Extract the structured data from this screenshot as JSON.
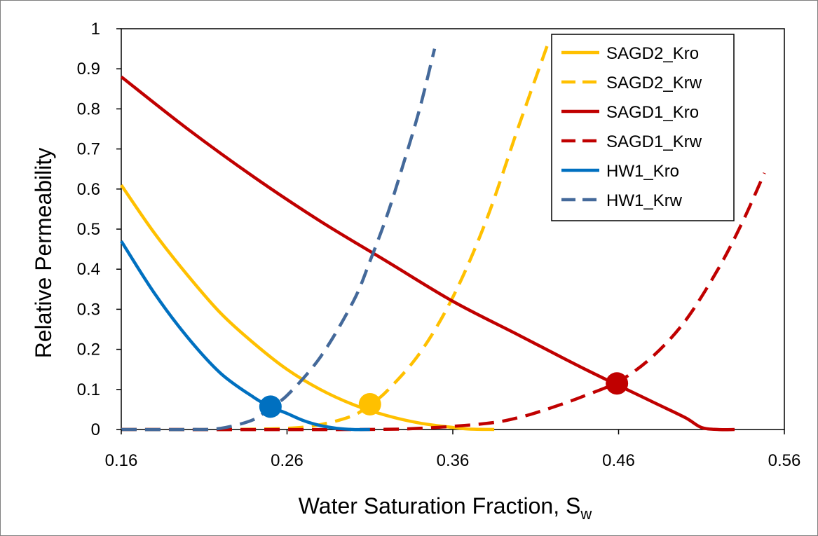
{
  "chart_data": {
    "type": "line",
    "xlabel": "Water Saturation Fraction, S",
    "xlabel_subscript": "w",
    "ylabel": "Relative Permeability",
    "xlim": [
      0.16,
      0.56
    ],
    "ylim": [
      0,
      1
    ],
    "x_ticks": [
      "0.16",
      "0.26",
      "0.36",
      "0.46",
      "0.56"
    ],
    "y_ticks": [
      "0",
      "0.1",
      "0.2",
      "0.3",
      "0.4",
      "0.5",
      "0.6",
      "0.7",
      "0.8",
      "0.9",
      "1"
    ],
    "grid": false,
    "legend_position": "top-right",
    "series": [
      {
        "name": "SAGD2_Kro",
        "color": "#ffc000",
        "style": "solid",
        "points": [
          [
            0.16,
            0.61
          ],
          [
            0.18,
            0.49
          ],
          [
            0.2,
            0.385
          ],
          [
            0.22,
            0.29
          ],
          [
            0.24,
            0.215
          ],
          [
            0.26,
            0.15
          ],
          [
            0.28,
            0.1
          ],
          [
            0.3,
            0.062
          ],
          [
            0.32,
            0.035
          ],
          [
            0.34,
            0.016
          ],
          [
            0.36,
            0.005
          ],
          [
            0.37,
            0.001
          ],
          [
            0.385,
            0
          ]
        ]
      },
      {
        "name": "SAGD2_Krw",
        "color": "#ffc000",
        "style": "dashed",
        "points": [
          [
            0.16,
            0
          ],
          [
            0.22,
            0
          ],
          [
            0.26,
            0.003
          ],
          [
            0.28,
            0.012
          ],
          [
            0.3,
            0.035
          ],
          [
            0.31,
            0.063
          ],
          [
            0.32,
            0.095
          ],
          [
            0.34,
            0.19
          ],
          [
            0.36,
            0.33
          ],
          [
            0.38,
            0.52
          ],
          [
            0.4,
            0.76
          ],
          [
            0.418,
            0.97
          ]
        ]
      },
      {
        "name": "SAGD1_Kro",
        "color": "#c00000",
        "style": "solid",
        "points": [
          [
            0.16,
            0.88
          ],
          [
            0.2,
            0.75
          ],
          [
            0.24,
            0.63
          ],
          [
            0.28,
            0.52
          ],
          [
            0.32,
            0.42
          ],
          [
            0.36,
            0.32
          ],
          [
            0.4,
            0.235
          ],
          [
            0.44,
            0.15
          ],
          [
            0.48,
            0.07
          ],
          [
            0.5,
            0.03
          ],
          [
            0.51,
            0.005
          ],
          [
            0.52,
            0
          ],
          [
            0.53,
            0
          ]
        ]
      },
      {
        "name": "SAGD1_Krw",
        "color": "#c00000",
        "style": "dashed",
        "points": [
          [
            0.16,
            0
          ],
          [
            0.3,
            0
          ],
          [
            0.34,
            0.003
          ],
          [
            0.38,
            0.015
          ],
          [
            0.4,
            0.03
          ],
          [
            0.42,
            0.055
          ],
          [
            0.44,
            0.085
          ],
          [
            0.46,
            0.12
          ],
          [
            0.48,
            0.18
          ],
          [
            0.5,
            0.27
          ],
          [
            0.52,
            0.4
          ],
          [
            0.535,
            0.52
          ],
          [
            0.548,
            0.64
          ]
        ]
      },
      {
        "name": "HW1_Kro",
        "color": "#0070c0",
        "style": "solid",
        "points": [
          [
            0.16,
            0.47
          ],
          [
            0.18,
            0.34
          ],
          [
            0.2,
            0.23
          ],
          [
            0.22,
            0.14
          ],
          [
            0.24,
            0.08
          ],
          [
            0.25,
            0.057
          ],
          [
            0.26,
            0.04
          ],
          [
            0.27,
            0.022
          ],
          [
            0.28,
            0.01
          ],
          [
            0.29,
            0.003
          ],
          [
            0.3,
            0
          ],
          [
            0.31,
            0
          ]
        ]
      },
      {
        "name": "HW1_Krw",
        "color": "#44699a",
        "style": "dashed",
        "points": [
          [
            0.16,
            0
          ],
          [
            0.2,
            0
          ],
          [
            0.22,
            0.003
          ],
          [
            0.24,
            0.025
          ],
          [
            0.25,
            0.057
          ],
          [
            0.26,
            0.085
          ],
          [
            0.28,
            0.18
          ],
          [
            0.3,
            0.32
          ],
          [
            0.31,
            0.42
          ],
          [
            0.32,
            0.53
          ],
          [
            0.33,
            0.66
          ],
          [
            0.34,
            0.8
          ],
          [
            0.349,
            0.95
          ]
        ]
      }
    ],
    "markers": [
      {
        "x": 0.25,
        "y": 0.057,
        "color": "#0070c0"
      },
      {
        "x": 0.31,
        "y": 0.063,
        "color": "#ffc000"
      },
      {
        "x": 0.459,
        "y": 0.115,
        "color": "#c00000"
      }
    ]
  }
}
